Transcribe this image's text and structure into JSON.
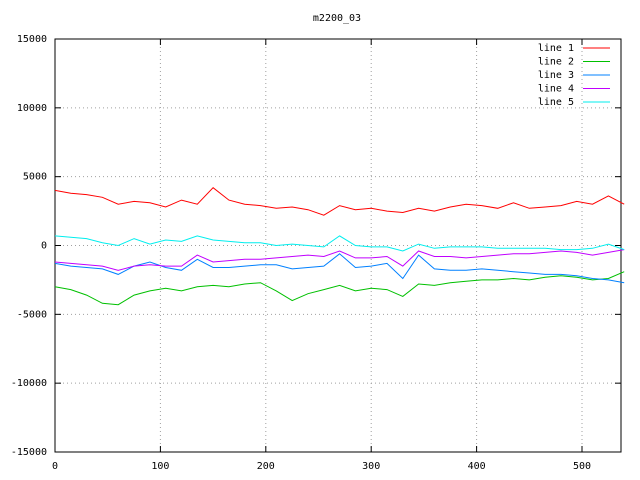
{
  "chart_data": {
    "type": "line",
    "title": "m2200_03",
    "x": [
      0,
      15,
      30,
      45,
      60,
      75,
      90,
      105,
      120,
      135,
      150,
      165,
      180,
      195,
      210,
      225,
      240,
      255,
      270,
      285,
      300,
      315,
      330,
      345,
      360,
      375,
      390,
      405,
      420,
      435,
      450,
      465,
      480,
      495,
      510,
      525,
      540
    ],
    "series": [
      {
        "name": "line 1",
        "color": "#ff0000",
        "values": [
          4000,
          3800,
          3700,
          3500,
          3000,
          3200,
          3100,
          2800,
          3300,
          3000,
          4200,
          3300,
          3000,
          2900,
          2700,
          2800,
          2600,
          2200,
          2900,
          2600,
          2700,
          2500,
          2400,
          2700,
          2500,
          2800,
          3000,
          2900,
          2700,
          3100,
          2700,
          2800,
          2900,
          3200,
          3000,
          3600,
          3000
        ]
      },
      {
        "name": "line 2",
        "color": "#00c000",
        "values": [
          -3000,
          -3200,
          -3600,
          -4200,
          -4300,
          -3600,
          -3300,
          -3100,
          -3300,
          -3000,
          -2900,
          -3000,
          -2800,
          -2700,
          -3300,
          -4000,
          -3500,
          -3200,
          -2900,
          -3300,
          -3100,
          -3200,
          -3700,
          -2800,
          -2900,
          -2700,
          -2600,
          -2500,
          -2500,
          -2400,
          -2500,
          -2300,
          -2200,
          -2300,
          -2500,
          -2400,
          -1900
        ]
      },
      {
        "name": "line 3",
        "color": "#0080ff",
        "values": [
          -1300,
          -1500,
          -1600,
          -1700,
          -2100,
          -1500,
          -1200,
          -1600,
          -1800,
          -1000,
          -1600,
          -1600,
          -1500,
          -1400,
          -1400,
          -1700,
          -1600,
          -1500,
          -600,
          -1600,
          -1500,
          -1300,
          -2400,
          -700,
          -1700,
          -1800,
          -1800,
          -1700,
          -1800,
          -1900,
          -2000,
          -2100,
          -2100,
          -2200,
          -2400,
          -2500,
          -2700
        ]
      },
      {
        "name": "line 4",
        "color": "#c000ff",
        "values": [
          -1200,
          -1300,
          -1400,
          -1500,
          -1800,
          -1500,
          -1400,
          -1500,
          -1500,
          -700,
          -1200,
          -1100,
          -1000,
          -1000,
          -900,
          -800,
          -700,
          -800,
          -400,
          -900,
          -900,
          -800,
          -1500,
          -400,
          -800,
          -800,
          -900,
          -800,
          -700,
          -600,
          -600,
          -500,
          -400,
          -500,
          -700,
          -500,
          -300
        ]
      },
      {
        "name": "line 5",
        "color": "#00eeee",
        "values": [
          700,
          600,
          500,
          200,
          0,
          500,
          100,
          400,
          300,
          700,
          400,
          300,
          200,
          200,
          0,
          100,
          0,
          -100,
          700,
          0,
          -100,
          -100,
          -400,
          100,
          -200,
          -100,
          -100,
          -100,
          -200,
          -200,
          -200,
          -200,
          -300,
          -300,
          -200,
          100,
          -300
        ]
      }
    ],
    "xlim": [
      0,
      537
    ],
    "ylim": [
      -15000,
      15000
    ],
    "xticks": [
      0,
      100,
      200,
      300,
      400,
      500
    ],
    "yticks": [
      -15000,
      -10000,
      -5000,
      0,
      5000,
      10000,
      15000
    ],
    "grid": true,
    "legend": "top-right"
  }
}
